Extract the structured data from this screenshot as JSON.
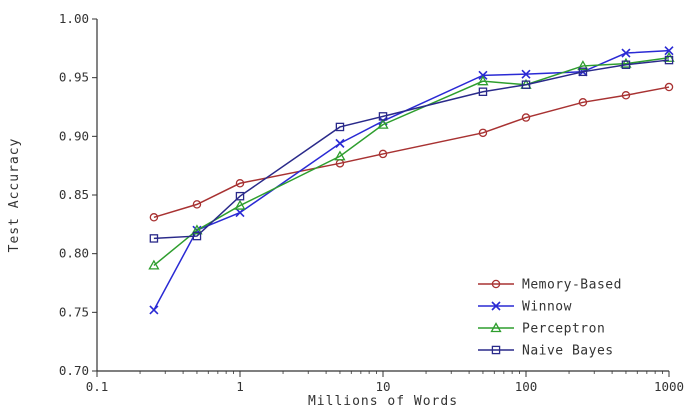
{
  "chart_data": {
    "type": "line",
    "xlabel": "Millions of Words",
    "ylabel": "Test Accuracy",
    "x_scale": "log",
    "xlim": [
      0.1,
      1000
    ],
    "ylim": [
      0.7,
      1.0
    ],
    "x_ticks": [
      0.1,
      1,
      10,
      100,
      1000
    ],
    "x_tick_labels": [
      "0.1",
      "1",
      "10",
      "100",
      "1000"
    ],
    "y_ticks": [
      0.7,
      0.75,
      0.8,
      0.85,
      0.9,
      0.95,
      1.0
    ],
    "y_tick_labels": [
      "0.70",
      "0.75",
      "0.80",
      "0.85",
      "0.90",
      "0.95",
      "1.00"
    ],
    "grid": false,
    "legend_position": "bottom-right",
    "series": [
      {
        "name": "Memory-Based",
        "color": "#a83232",
        "marker": "circle",
        "x": [
          0.25,
          0.5,
          1,
          5,
          10,
          50,
          100,
          250,
          500,
          1000
        ],
        "values": [
          0.831,
          0.842,
          0.86,
          0.877,
          0.885,
          0.903,
          0.916,
          0.929,
          0.935,
          0.942
        ]
      },
      {
        "name": "Winnow",
        "color": "#2a2ad4",
        "marker": "x",
        "x": [
          0.25,
          0.5,
          1,
          5,
          10,
          50,
          100,
          250,
          500,
          1000
        ],
        "values": [
          0.752,
          0.82,
          0.835,
          0.894,
          0.913,
          0.952,
          0.953,
          0.955,
          0.971,
          0.973
        ]
      },
      {
        "name": "Perceptron",
        "color": "#2e9e2e",
        "marker": "triangle",
        "x": [
          0.25,
          0.5,
          1,
          5,
          10,
          50,
          100,
          250,
          500,
          1000
        ],
        "values": [
          0.79,
          0.82,
          0.841,
          0.883,
          0.91,
          0.947,
          0.944,
          0.96,
          0.962,
          0.967
        ]
      },
      {
        "name": "Naive Bayes",
        "color": "#2a2a8a",
        "marker": "square",
        "x": [
          0.25,
          0.5,
          1,
          5,
          10,
          50,
          100,
          250,
          500,
          1000
        ],
        "values": [
          0.813,
          0.815,
          0.849,
          0.908,
          0.917,
          0.938,
          0.944,
          0.955,
          0.961,
          0.965
        ]
      }
    ]
  }
}
